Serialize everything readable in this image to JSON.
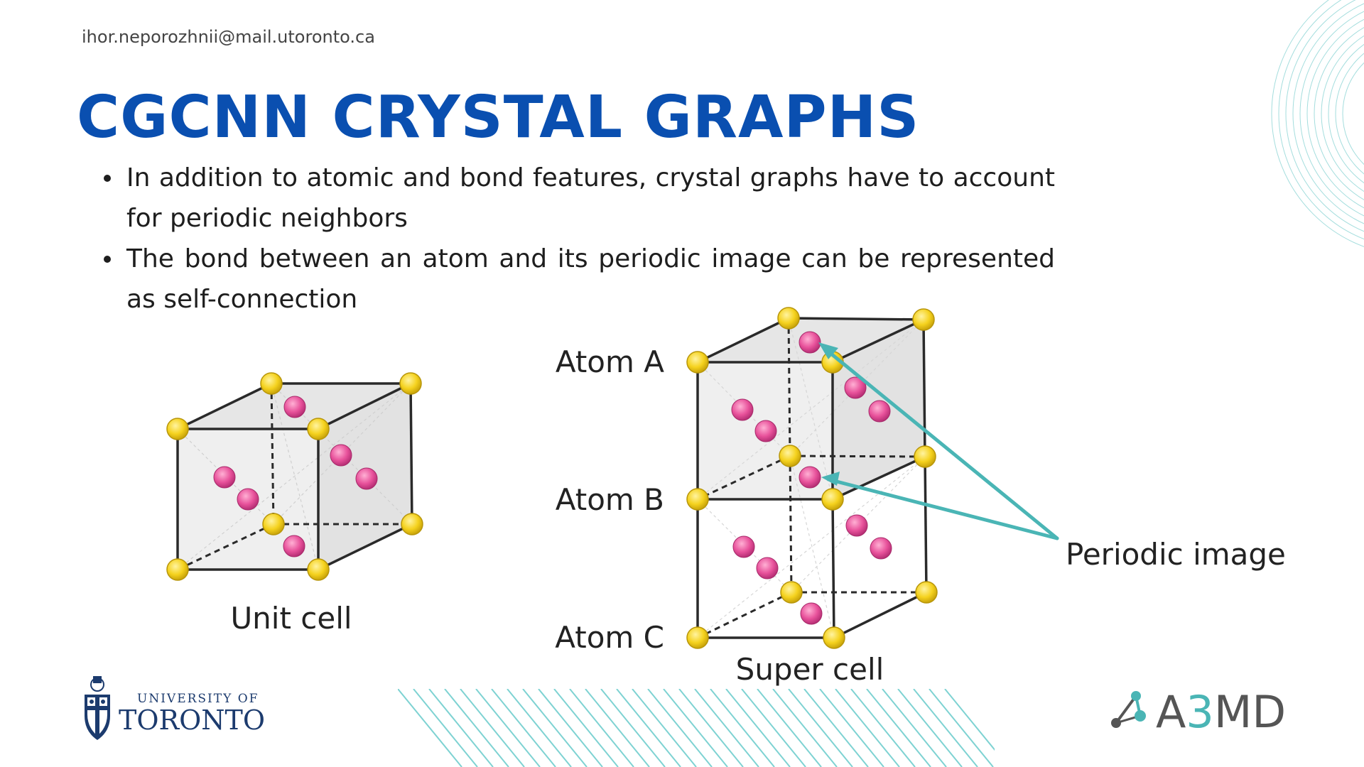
{
  "header": {
    "email": "ihor.neporozhnii@mail.utoronto.ca",
    "title": "CGCNN CRYSTAL GRAPHS"
  },
  "bullets": [
    "In addition to atomic and bond features, crystal graphs have to account for periodic neighbors",
    "The bond between an atom and its periodic image can be represented as self-connection"
  ],
  "diagram": {
    "unit_cell_label": "Unit cell",
    "super_cell_label": "Super cell",
    "atom_a_label": "Atom A",
    "atom_b_label": "Atom B",
    "atom_c_label": "Atom C",
    "periodic_image_label": "Periodic image"
  },
  "logos": {
    "uoft_line1": "UNIVERSITY OF",
    "uoft_line2": "TORONTO",
    "a3md_prefix": "A",
    "a3md_number": "3",
    "a3md_suffix": "MD"
  },
  "colors": {
    "title": "#0a4fb0",
    "corner_atom": "#f5d21e",
    "inner_atom": "#e8529b",
    "arrow": "#4ab5b5",
    "uoft_blue": "#1c3b6e",
    "a3md_gray": "#555555",
    "a3md_teal": "#4ab5b5"
  },
  "icons": [
    "university-crest-icon",
    "network-nodes-icon"
  ]
}
